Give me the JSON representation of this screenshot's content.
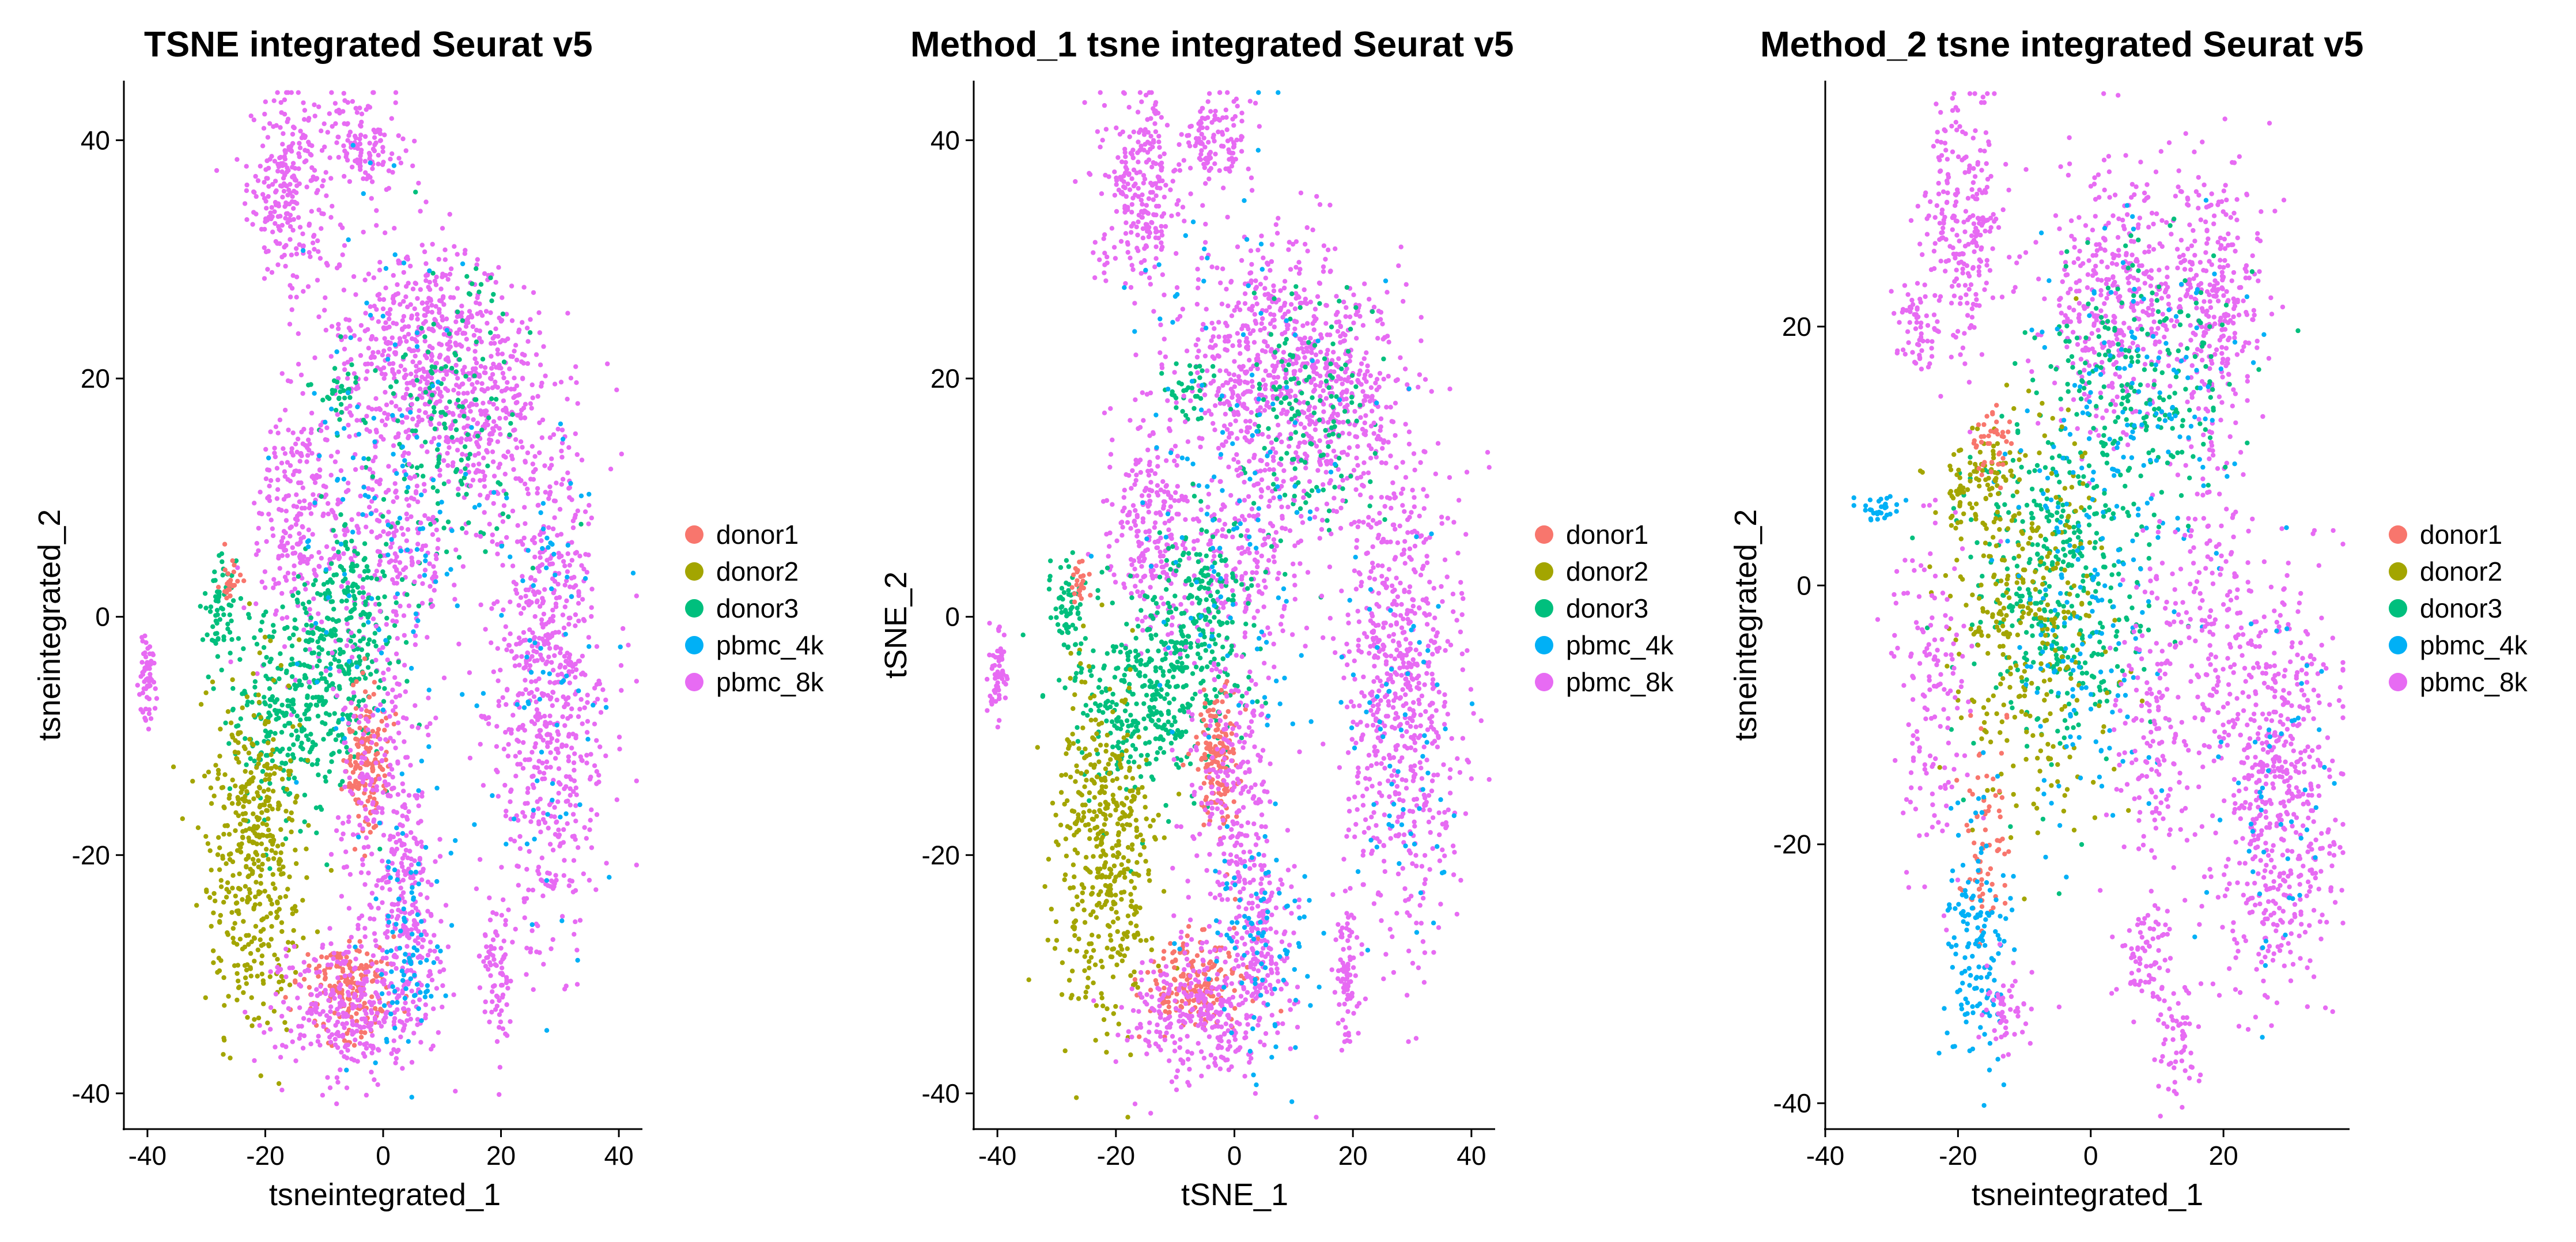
{
  "groups": [
    {
      "name": "donor1",
      "color": "#F8766D"
    },
    {
      "name": "donor2",
      "color": "#A3A500"
    },
    {
      "name": "donor3",
      "color": "#00BF7D"
    },
    {
      "name": "pbmc_4k",
      "color": "#00B0F6"
    },
    {
      "name": "pbmc_8k",
      "color": "#E76BF3"
    }
  ],
  "chart_data": [
    {
      "type": "scatter",
      "title": "TSNE integrated Seurat v5",
      "xlabel": "tsneintegrated_1",
      "ylabel": "tsneintegrated_2",
      "xlim": [
        -44,
        44
      ],
      "ylim": [
        -43,
        45
      ],
      "xticks": [
        -40,
        -20,
        0,
        20,
        40
      ],
      "yticks": [
        -40,
        -20,
        0,
        20,
        40
      ],
      "clusters": [
        {
          "group": "pbmc_8k",
          "cx": -16,
          "cy": 36,
          "sx": 3.5,
          "sy": 4,
          "n": 260
        },
        {
          "group": "pbmc_8k",
          "cx": -3,
          "cy": 40,
          "sx": 3,
          "sy": 2,
          "n": 120
        },
        {
          "group": "pbmc_8k",
          "cx": 5,
          "cy": 22,
          "sx": 7,
          "sy": 5,
          "n": 500
        },
        {
          "group": "pbmc_8k",
          "cx": 18,
          "cy": 18,
          "sx": 5,
          "sy": 5,
          "n": 320
        },
        {
          "group": "donor3",
          "cx": 12,
          "cy": 16,
          "sx": 6,
          "sy": 6,
          "n": 150
        },
        {
          "group": "donor3",
          "cx": -8,
          "cy": 19,
          "sx": 2,
          "sy": 1.5,
          "n": 35
        },
        {
          "group": "pbmc_8k",
          "cx": -14,
          "cy": 8,
          "sx": 4,
          "sy": 5,
          "n": 260
        },
        {
          "group": "pbmc_8k",
          "cx": 2,
          "cy": 6,
          "sx": 5,
          "sy": 5,
          "n": 220
        },
        {
          "group": "pbmc_8k",
          "cx": 28,
          "cy": -6,
          "sx": 5,
          "sy": 11,
          "n": 700
        },
        {
          "group": "pbmc_4k",
          "cx": 28,
          "cy": -6,
          "sx": 5,
          "sy": 11,
          "n": 70
        },
        {
          "group": "donor3",
          "cx": -15,
          "cy": -7,
          "sx": 6,
          "sy": 4,
          "n": 350
        },
        {
          "group": "donor3",
          "cx": -5,
          "cy": 0,
          "sx": 4,
          "sy": 4,
          "n": 200
        },
        {
          "group": "donor2",
          "cx": -22,
          "cy": -20,
          "sx": 4,
          "sy": 7,
          "n": 450
        },
        {
          "group": "donor1",
          "cx": -3,
          "cy": -12,
          "sx": 2,
          "sy": 3,
          "n": 150
        },
        {
          "group": "pbmc_8k",
          "cx": -1,
          "cy": -14,
          "sx": 4,
          "sy": 6,
          "n": 220
        },
        {
          "group": "donor1",
          "cx": -6,
          "cy": -31,
          "sx": 4,
          "sy": 2,
          "n": 180
        },
        {
          "group": "pbmc_8k",
          "cx": -6,
          "cy": -33,
          "sx": 6,
          "sy": 3,
          "n": 300
        },
        {
          "group": "pbmc_8k",
          "cx": 4,
          "cy": -26,
          "sx": 3,
          "sy": 5,
          "n": 200
        },
        {
          "group": "pbmc_4k",
          "cx": 4,
          "cy": -28,
          "sx": 4,
          "sy": 5,
          "n": 90
        },
        {
          "group": "donor3",
          "cx": -28,
          "cy": 1,
          "sx": 1.5,
          "sy": 2,
          "n": 60
        },
        {
          "group": "donor1",
          "cx": -26,
          "cy": 3,
          "sx": 0.8,
          "sy": 0.8,
          "n": 25
        },
        {
          "group": "pbmc_8k",
          "cx": -40,
          "cy": -5,
          "sx": 0.8,
          "sy": 2,
          "n": 60
        },
        {
          "group": "pbmc_8k",
          "cx": 19,
          "cy": -30,
          "sx": 1.2,
          "sy": 3,
          "n": 80
        },
        {
          "group": "pbmc_4k",
          "cx": 0,
          "cy": 10,
          "sx": 8,
          "sy": 12,
          "n": 130
        }
      ]
    },
    {
      "type": "scatter",
      "title": "Method_1 tsne integrated Seurat v5",
      "xlabel": "tSNE_1",
      "ylabel": "tSNE_2",
      "xlim": [
        -44,
        44
      ],
      "ylim": [
        -43,
        45
      ],
      "xticks": [
        -40,
        -20,
        0,
        20,
        40
      ],
      "yticks": [
        -40,
        -20,
        0,
        20,
        40
      ],
      "clusters": [
        {
          "group": "pbmc_8k",
          "cx": -16,
          "cy": 36,
          "sx": 3.5,
          "sy": 4,
          "n": 260
        },
        {
          "group": "pbmc_8k",
          "cx": -3,
          "cy": 40,
          "sx": 3,
          "sy": 2,
          "n": 120
        },
        {
          "group": "pbmc_8k",
          "cx": 5,
          "cy": 22,
          "sx": 7,
          "sy": 5,
          "n": 500
        },
        {
          "group": "pbmc_8k",
          "cx": 18,
          "cy": 18,
          "sx": 5,
          "sy": 5,
          "n": 320
        },
        {
          "group": "donor3",
          "cx": 12,
          "cy": 16,
          "sx": 6,
          "sy": 6,
          "n": 150
        },
        {
          "group": "donor3",
          "cx": -8,
          "cy": 19,
          "sx": 2,
          "sy": 1.5,
          "n": 35
        },
        {
          "group": "pbmc_8k",
          "cx": -14,
          "cy": 8,
          "sx": 4,
          "sy": 5,
          "n": 260
        },
        {
          "group": "pbmc_8k",
          "cx": 2,
          "cy": 6,
          "sx": 5,
          "sy": 5,
          "n": 220
        },
        {
          "group": "pbmc_8k",
          "cx": 28,
          "cy": -6,
          "sx": 5,
          "sy": 11,
          "n": 700
        },
        {
          "group": "pbmc_4k",
          "cx": 28,
          "cy": -6,
          "sx": 5,
          "sy": 11,
          "n": 70
        },
        {
          "group": "donor3",
          "cx": -15,
          "cy": -7,
          "sx": 6,
          "sy": 4,
          "n": 350
        },
        {
          "group": "donor3",
          "cx": -5,
          "cy": 0,
          "sx": 4,
          "sy": 4,
          "n": 200
        },
        {
          "group": "donor2",
          "cx": -22,
          "cy": -20,
          "sx": 4,
          "sy": 7,
          "n": 450
        },
        {
          "group": "donor1",
          "cx": -3,
          "cy": -12,
          "sx": 2,
          "sy": 3,
          "n": 150
        },
        {
          "group": "pbmc_8k",
          "cx": -1,
          "cy": -14,
          "sx": 4,
          "sy": 6,
          "n": 220
        },
        {
          "group": "donor1",
          "cx": -6,
          "cy": -31,
          "sx": 4,
          "sy": 2,
          "n": 180
        },
        {
          "group": "pbmc_8k",
          "cx": -6,
          "cy": -33,
          "sx": 6,
          "sy": 3,
          "n": 300
        },
        {
          "group": "pbmc_8k",
          "cx": 4,
          "cy": -26,
          "sx": 3,
          "sy": 5,
          "n": 200
        },
        {
          "group": "pbmc_4k",
          "cx": 4,
          "cy": -28,
          "sx": 4,
          "sy": 5,
          "n": 90
        },
        {
          "group": "donor3",
          "cx": -28,
          "cy": 1,
          "sx": 1.5,
          "sy": 2,
          "n": 60
        },
        {
          "group": "donor1",
          "cx": -26,
          "cy": 3,
          "sx": 0.8,
          "sy": 0.8,
          "n": 25
        },
        {
          "group": "pbmc_8k",
          "cx": -40,
          "cy": -5,
          "sx": 0.8,
          "sy": 2,
          "n": 60
        },
        {
          "group": "pbmc_8k",
          "cx": 19,
          "cy": -30,
          "sx": 1.2,
          "sy": 3,
          "n": 80
        },
        {
          "group": "pbmc_4k",
          "cx": 0,
          "cy": 10,
          "sx": 8,
          "sy": 12,
          "n": 130
        }
      ]
    },
    {
      "type": "scatter",
      "title": "Method_2 tsne integrated Seurat v5",
      "xlabel": "tsneintegrated_1",
      "ylabel": "tsneintegrated_2",
      "xlim": [
        -40,
        39
      ],
      "ylim": [
        -42,
        39
      ],
      "xticks": [
        -40,
        -20,
        0,
        20
      ],
      "yticks": [
        -40,
        -20,
        0,
        20
      ],
      "clusters": [
        {
          "group": "pbmc_8k",
          "cx": -19,
          "cy": 28,
          "sx": 3,
          "sy": 5,
          "n": 250
        },
        {
          "group": "pbmc_8k",
          "cx": -26,
          "cy": 20,
          "sx": 1.5,
          "sy": 2,
          "n": 60
        },
        {
          "group": "pbmc_8k",
          "cx": 3,
          "cy": 22,
          "sx": 5,
          "sy": 5,
          "n": 380
        },
        {
          "group": "pbmc_8k",
          "cx": 18,
          "cy": 22,
          "sx": 4,
          "sy": 5,
          "n": 320
        },
        {
          "group": "donor3",
          "cx": 8,
          "cy": 16,
          "sx": 7,
          "sy": 5,
          "n": 200
        },
        {
          "group": "pbmc_4k",
          "cx": 8,
          "cy": 15,
          "sx": 7,
          "sy": 6,
          "n": 120
        },
        {
          "group": "donor3",
          "cx": -5,
          "cy": 0,
          "sx": 7,
          "sy": 7,
          "n": 420
        },
        {
          "group": "donor2",
          "cx": -10,
          "cy": -3,
          "sx": 6,
          "sy": 8,
          "n": 320
        },
        {
          "group": "pbmc_4k",
          "cx": -2,
          "cy": -2,
          "sx": 7,
          "sy": 8,
          "n": 160
        },
        {
          "group": "pbmc_8k",
          "cx": -24,
          "cy": -8,
          "sx": 3,
          "sy": 6,
          "n": 150
        },
        {
          "group": "pbmc_8k",
          "cx": 9,
          "cy": -10,
          "sx": 3,
          "sy": 7,
          "n": 160
        },
        {
          "group": "pbmc_8k",
          "cx": 18,
          "cy": 0,
          "sx": 3,
          "sy": 6,
          "n": 140
        },
        {
          "group": "pbmc_8k",
          "cx": 28,
          "cy": -16,
          "sx": 5,
          "sy": 8,
          "n": 600
        },
        {
          "group": "pbmc_4k",
          "cx": 28,
          "cy": -16,
          "sx": 5,
          "sy": 8,
          "n": 50
        },
        {
          "group": "donor2",
          "cx": -17,
          "cy": 8,
          "sx": 3,
          "sy": 2,
          "n": 90
        },
        {
          "group": "donor1",
          "cx": -15,
          "cy": 11,
          "sx": 1.5,
          "sy": 1.5,
          "n": 40
        },
        {
          "group": "pbmc_4k",
          "cx": -32,
          "cy": 6,
          "sx": 2,
          "sy": 0.5,
          "n": 30
        },
        {
          "group": "donor1",
          "cx": -16,
          "cy": -20,
          "sx": 2,
          "sy": 4,
          "n": 70
        },
        {
          "group": "pbmc_4k",
          "cx": -17,
          "cy": -28,
          "sx": 2.5,
          "sy": 5,
          "n": 150
        },
        {
          "group": "pbmc_8k",
          "cx": -13,
          "cy": -33,
          "sx": 2,
          "sy": 2,
          "n": 50
        },
        {
          "group": "pbmc_8k",
          "cx": 8,
          "cy": -29,
          "sx": 2,
          "sy": 2,
          "n": 70
        },
        {
          "group": "pbmc_8k",
          "cx": 13,
          "cy": -35,
          "sx": 1.5,
          "sy": 2,
          "n": 60
        }
      ]
    }
  ]
}
